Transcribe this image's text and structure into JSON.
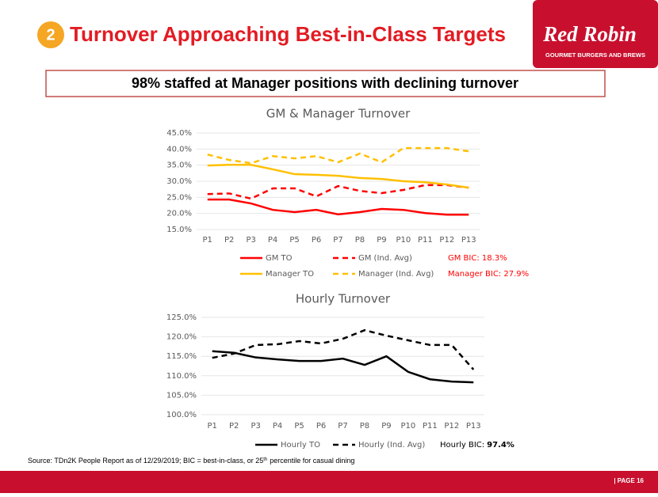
{
  "slide": {
    "badge": "2",
    "title": "Turnover Approaching Best-in-Class Targets",
    "logo": {
      "brand": "Red Robin",
      "tagline": "GOURMET BURGERS AND BREWS"
    },
    "subtitle": "98% staffed at Manager positions with declining turnover",
    "source": [
      "Source: TDn2K People Report as of 12/29/2019;  BIC = best-in-class, or 25",
      "th",
      "percentile for casual dining"
    ],
    "page": "| PAGE 16"
  },
  "chart_data": [
    {
      "type": "line",
      "title": "GM & Manager Turnover",
      "categories": [
        "P1",
        "P2",
        "P3",
        "P4",
        "P5",
        "P6",
        "P7",
        "P8",
        "P9",
        "P10",
        "P11",
        "P12",
        "P13"
      ],
      "ylim": [
        15,
        45
      ],
      "yticks": [
        {
          "value": 15,
          "label": "15.0%"
        },
        {
          "value": 20,
          "label": "20.0%"
        },
        {
          "value": 25,
          "label": "25.0%"
        },
        {
          "value": 30,
          "label": "30.0%"
        },
        {
          "value": 35,
          "label": "35.0%"
        },
        {
          "value": 40,
          "label": "40.0%"
        },
        {
          "value": 45,
          "label": "45.0%"
        }
      ],
      "grid": true,
      "series": [
        {
          "name": "GM TO",
          "color": "#ff0000",
          "dashed": false,
          "values": [
            24.3,
            24.3,
            23.1,
            21.1,
            20.4,
            21.1,
            19.7,
            20.4,
            21.4,
            21.1,
            20.1,
            19.6,
            19.6
          ]
        },
        {
          "name": "GM (Ind. Avg)",
          "color": "#ff0000",
          "dashed": true,
          "values": [
            26.0,
            26.2,
            24.6,
            27.8,
            27.8,
            25.3,
            28.5,
            27.0,
            26.3,
            27.3,
            28.8,
            28.8,
            28.0
          ]
        },
        {
          "name": "Manager TO",
          "color": "#ffc000",
          "dashed": false,
          "values": [
            34.9,
            35.1,
            35.1,
            33.7,
            32.2,
            32.0,
            31.7,
            31.0,
            30.7,
            30.0,
            29.7,
            29.0,
            28.0
          ]
        },
        {
          "name": "Manager (Ind. Avg)",
          "color": "#ffc000",
          "dashed": true,
          "values": [
            38.3,
            36.6,
            35.6,
            37.8,
            37.1,
            37.8,
            35.9,
            38.6,
            35.9,
            40.3,
            40.3,
            40.3,
            39.3
          ]
        }
      ],
      "annotations": [
        {
          "text": "GM BIC: 18.3%",
          "color": "#ff0000"
        },
        {
          "text": "Manager BIC: 27.9%",
          "color": "#ff0000"
        }
      ]
    },
    {
      "type": "line",
      "title": "Hourly Turnover",
      "categories": [
        "P1",
        "P2",
        "P3",
        "P4",
        "P5",
        "P6",
        "P7",
        "P8",
        "P9",
        "P10",
        "P11",
        "P12",
        "P13"
      ],
      "ylim": [
        100,
        125
      ],
      "yticks": [
        {
          "value": 100,
          "label": "100.0%"
        },
        {
          "value": 105,
          "label": "105.0%"
        },
        {
          "value": 110,
          "label": "110.0%"
        },
        {
          "value": 115,
          "label": "115.0%"
        },
        {
          "value": 120,
          "label": "120.0%"
        },
        {
          "value": 125,
          "label": "125.0%"
        }
      ],
      "grid": true,
      "series": [
        {
          "name": "Hourly TO",
          "color": "#000000",
          "dashed": false,
          "values": [
            116.3,
            115.9,
            114.7,
            114.2,
            113.8,
            113.8,
            114.4,
            112.8,
            115.0,
            111.0,
            109.1,
            108.5,
            108.3
          ]
        },
        {
          "name": "Hourly (Ind. Avg)",
          "color": "#000000",
          "dashed": true,
          "values": [
            114.6,
            115.7,
            117.9,
            118.1,
            118.9,
            118.3,
            119.5,
            121.7,
            120.3,
            119.1,
            117.9,
            117.9,
            111.6
          ]
        }
      ],
      "annotations": [
        {
          "text": "Hourly BIC:",
          "emphasis": "97.4%",
          "color": "#000000"
        }
      ]
    }
  ]
}
